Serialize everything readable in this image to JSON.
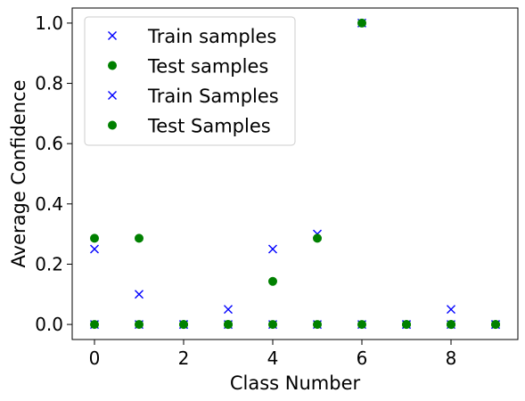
{
  "chart_data": {
    "type": "scatter",
    "xlabel": "Class Number",
    "ylabel": "Average Confidence",
    "xlim": [
      -0.5,
      9.5
    ],
    "ylim": [
      -0.05,
      1.05
    ],
    "xticks": [
      0,
      2,
      4,
      6,
      8
    ],
    "yticks": [
      0.0,
      0.2,
      0.4,
      0.6,
      0.8,
      1.0
    ],
    "xtick_labels": [
      "0",
      "2",
      "4",
      "6",
      "8"
    ],
    "ytick_labels": [
      "0.0",
      "0.2",
      "0.4",
      "0.6",
      "0.8",
      "1.0"
    ],
    "grid": false,
    "legend_position": "top-left",
    "series": [
      {
        "name": "Train samples",
        "marker": "x",
        "color": "#0000ff",
        "points": [
          [
            0,
            0
          ],
          [
            1,
            0
          ],
          [
            2,
            0
          ],
          [
            3,
            0
          ],
          [
            4,
            0
          ],
          [
            5,
            0
          ],
          [
            6,
            0
          ],
          [
            7,
            0
          ],
          [
            8,
            0
          ],
          [
            9,
            0
          ]
        ]
      },
      {
        "name": "Test samples",
        "marker": "circle",
        "color": "#008000",
        "points": [
          [
            0,
            0
          ],
          [
            1,
            0
          ],
          [
            2,
            0
          ],
          [
            3,
            0
          ],
          [
            4,
            0
          ],
          [
            5,
            0
          ],
          [
            6,
            0
          ],
          [
            7,
            0
          ],
          [
            8,
            0
          ],
          [
            9,
            0
          ]
        ]
      },
      {
        "name": "Train Samples",
        "marker": "x",
        "color": "#0000ff",
        "points": [
          [
            0,
            0.25
          ],
          [
            1,
            0.1
          ],
          [
            2,
            0.0
          ],
          [
            3,
            0.05
          ],
          [
            4,
            0.25
          ],
          [
            5,
            0.3
          ],
          [
            6,
            1.0
          ],
          [
            7,
            0.0
          ],
          [
            8,
            0.05
          ],
          [
            9,
            0.0
          ]
        ]
      },
      {
        "name": "Test Samples",
        "marker": "circle",
        "color": "#008000",
        "points": [
          [
            0,
            0.286
          ],
          [
            1,
            0.286
          ],
          [
            2,
            0.0
          ],
          [
            3,
            0.0
          ],
          [
            4,
            0.143
          ],
          [
            5,
            0.286
          ],
          [
            6,
            1.0
          ],
          [
            7,
            0.0
          ],
          [
            8,
            0.0
          ],
          [
            9,
            0.0
          ]
        ]
      }
    ]
  }
}
